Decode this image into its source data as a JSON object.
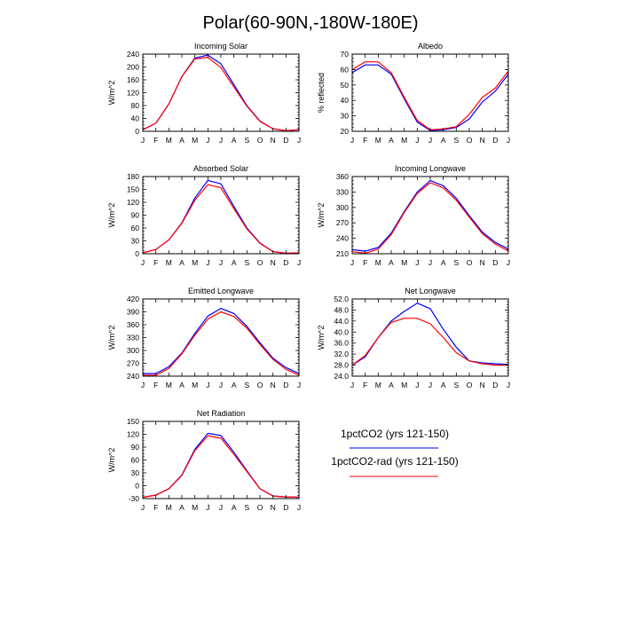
{
  "page": {
    "title": "Polar(60-90N,-180W-180E)"
  },
  "colors": {
    "series1": "#0000ff",
    "series2": "#ff0000",
    "axis": "#000000"
  },
  "legend": {
    "entries": [
      {
        "label": "1pctCO2 (yrs 121-150)",
        "color": "#0000ff"
      },
      {
        "label": "1pctCO2-rad (yrs 121-150)",
        "color": "#ff0000"
      }
    ]
  },
  "chart_data": [
    {
      "type": "line",
      "title": "Incoming Solar",
      "ylabel": "W/m^2",
      "categories": [
        "J",
        "F",
        "M",
        "A",
        "M",
        "J",
        "J",
        "A",
        "S",
        "O",
        "N",
        "D",
        "J"
      ],
      "ylim": [
        0,
        240
      ],
      "yticks": [
        "0",
        "40",
        "80",
        "120",
        "160",
        "200",
        "240"
      ],
      "series": [
        {
          "name": "1pctCO2 (yrs 121-150)",
          "color": "#0000ff",
          "values": [
            5,
            25,
            85,
            170,
            228,
            237,
            210,
            145,
            80,
            32,
            8,
            2,
            5
          ]
        },
        {
          "name": "1pctCO2-rad (yrs 121-150)",
          "color": "#ff0000",
          "values": [
            5,
            25,
            85,
            170,
            225,
            230,
            198,
            138,
            78,
            31,
            8,
            2,
            5
          ]
        }
      ]
    },
    {
      "type": "line",
      "title": "Albedo",
      "ylabel": "% reflected",
      "categories": [
        "J",
        "F",
        "M",
        "A",
        "M",
        "J",
        "J",
        "A",
        "S",
        "O",
        "N",
        "D",
        "J"
      ],
      "ylim": [
        20,
        70
      ],
      "yticks": [
        "20",
        "30",
        "40",
        "50",
        "60",
        "70"
      ],
      "series": [
        {
          "name": "1pctCO2 (yrs 121-150)",
          "color": "#0000ff",
          "values": [
            58,
            63,
            63,
            57,
            41,
            26,
            20.5,
            21,
            22.5,
            28,
            39,
            46,
            57
          ]
        },
        {
          "name": "1pctCO2-rad (yrs 121-150)",
          "color": "#ff0000",
          "values": [
            60,
            65,
            65,
            58,
            42,
            27,
            21,
            21.5,
            23,
            31,
            42,
            48,
            59
          ]
        }
      ]
    },
    {
      "type": "line",
      "title": "Absorbed Solar",
      "ylabel": "W/m^2",
      "categories": [
        "J",
        "F",
        "M",
        "A",
        "M",
        "J",
        "J",
        "A",
        "S",
        "O",
        "N",
        "D",
        "J"
      ],
      "ylim": [
        0,
        180
      ],
      "yticks": [
        "0",
        "30",
        "60",
        "90",
        "120",
        "150",
        "180"
      ],
      "series": [
        {
          "name": "1pctCO2 (yrs 121-150)",
          "color": "#0000ff",
          "values": [
            2,
            10,
            32,
            72,
            130,
            171,
            163,
            110,
            60,
            25,
            5,
            1,
            2
          ]
        },
        {
          "name": "1pctCO2-rad (yrs 121-150)",
          "color": "#ff0000",
          "values": [
            2,
            10,
            32,
            71,
            125,
            161,
            154,
            105,
            58,
            24,
            5,
            1,
            2
          ]
        }
      ]
    },
    {
      "type": "line",
      "title": "Incoming Longwave",
      "ylabel": "W/m^2",
      "categories": [
        "J",
        "F",
        "M",
        "A",
        "M",
        "J",
        "J",
        "A",
        "S",
        "O",
        "N",
        "D",
        "J"
      ],
      "ylim": [
        210,
        360
      ],
      "yticks": [
        "210",
        "240",
        "270",
        "300",
        "330",
        "360"
      ],
      "series": [
        {
          "name": "1pctCO2 (yrs 121-150)",
          "color": "#0000ff",
          "values": [
            218,
            215,
            222,
            250,
            292,
            330,
            352,
            342,
            318,
            284,
            252,
            232,
            219
          ]
        },
        {
          "name": "1pctCO2-rad (yrs 121-150)",
          "color": "#ff0000",
          "values": [
            214,
            211,
            219,
            247,
            290,
            327,
            348,
            338,
            314,
            281,
            249,
            229,
            215
          ]
        }
      ]
    },
    {
      "type": "line",
      "title": "Emitted Longwave",
      "ylabel": "W/m^2",
      "categories": [
        "J",
        "F",
        "M",
        "A",
        "M",
        "J",
        "J",
        "A",
        "S",
        "O",
        "N",
        "D",
        "J"
      ],
      "ylim": [
        240,
        420
      ],
      "yticks": [
        "240",
        "270",
        "300",
        "330",
        "360",
        "390",
        "420"
      ],
      "series": [
        {
          "name": "1pctCO2 (yrs 121-150)",
          "color": "#0000ff",
          "values": [
            246,
            246,
            262,
            294,
            340,
            380,
            398,
            386,
            356,
            318,
            282,
            260,
            246
          ]
        },
        {
          "name": "1pctCO2-rad (yrs 121-150)",
          "color": "#ff0000",
          "values": [
            242,
            242,
            258,
            292,
            336,
            373,
            390,
            379,
            352,
            314,
            279,
            256,
            242
          ]
        }
      ]
    },
    {
      "type": "line",
      "title": "Net Longwave",
      "ylabel": "W/m^2",
      "categories": [
        "J",
        "F",
        "M",
        "A",
        "M",
        "J",
        "J",
        "A",
        "S",
        "O",
        "N",
        "D",
        "J"
      ],
      "ylim": [
        24,
        52
      ],
      "yticks": [
        "24.0",
        "28.0",
        "32.0",
        "36.0",
        "40.0",
        "44.0",
        "48.0",
        "52.0"
      ],
      "series": [
        {
          "name": "1pctCO2 (yrs 121-150)",
          "color": "#0000ff",
          "values": [
            28,
            31,
            38,
            44,
            47.5,
            50.5,
            48.5,
            41,
            34.5,
            29.5,
            28.8,
            28.5,
            28.2
          ]
        },
        {
          "name": "1pctCO2-rad (yrs 121-150)",
          "color": "#ff0000",
          "values": [
            28,
            31.5,
            38,
            43.5,
            45,
            45,
            43,
            38,
            32.5,
            29.5,
            28.5,
            28,
            28
          ]
        }
      ]
    },
    {
      "type": "line",
      "title": "Net Radiation",
      "ylabel": "W/m^2",
      "categories": [
        "J",
        "F",
        "M",
        "A",
        "M",
        "J",
        "J",
        "A",
        "S",
        "O",
        "N",
        "D",
        "J"
      ],
      "ylim": [
        -30,
        150
      ],
      "yticks": [
        "-30",
        "0",
        "30",
        "60",
        "90",
        "120",
        "150"
      ],
      "series": [
        {
          "name": "1pctCO2 (yrs 121-150)",
          "color": "#0000ff",
          "values": [
            -27,
            -22,
            -7,
            25,
            85,
            122,
            117,
            78,
            35,
            -7,
            -24,
            -26,
            -27
          ]
        },
        {
          "name": "1pctCO2-rad (yrs 121-150)",
          "color": "#ff0000",
          "values": [
            -27,
            -22,
            -7,
            24,
            82,
            116,
            111,
            73,
            33,
            -7,
            -24,
            -26,
            -27
          ]
        }
      ]
    }
  ]
}
